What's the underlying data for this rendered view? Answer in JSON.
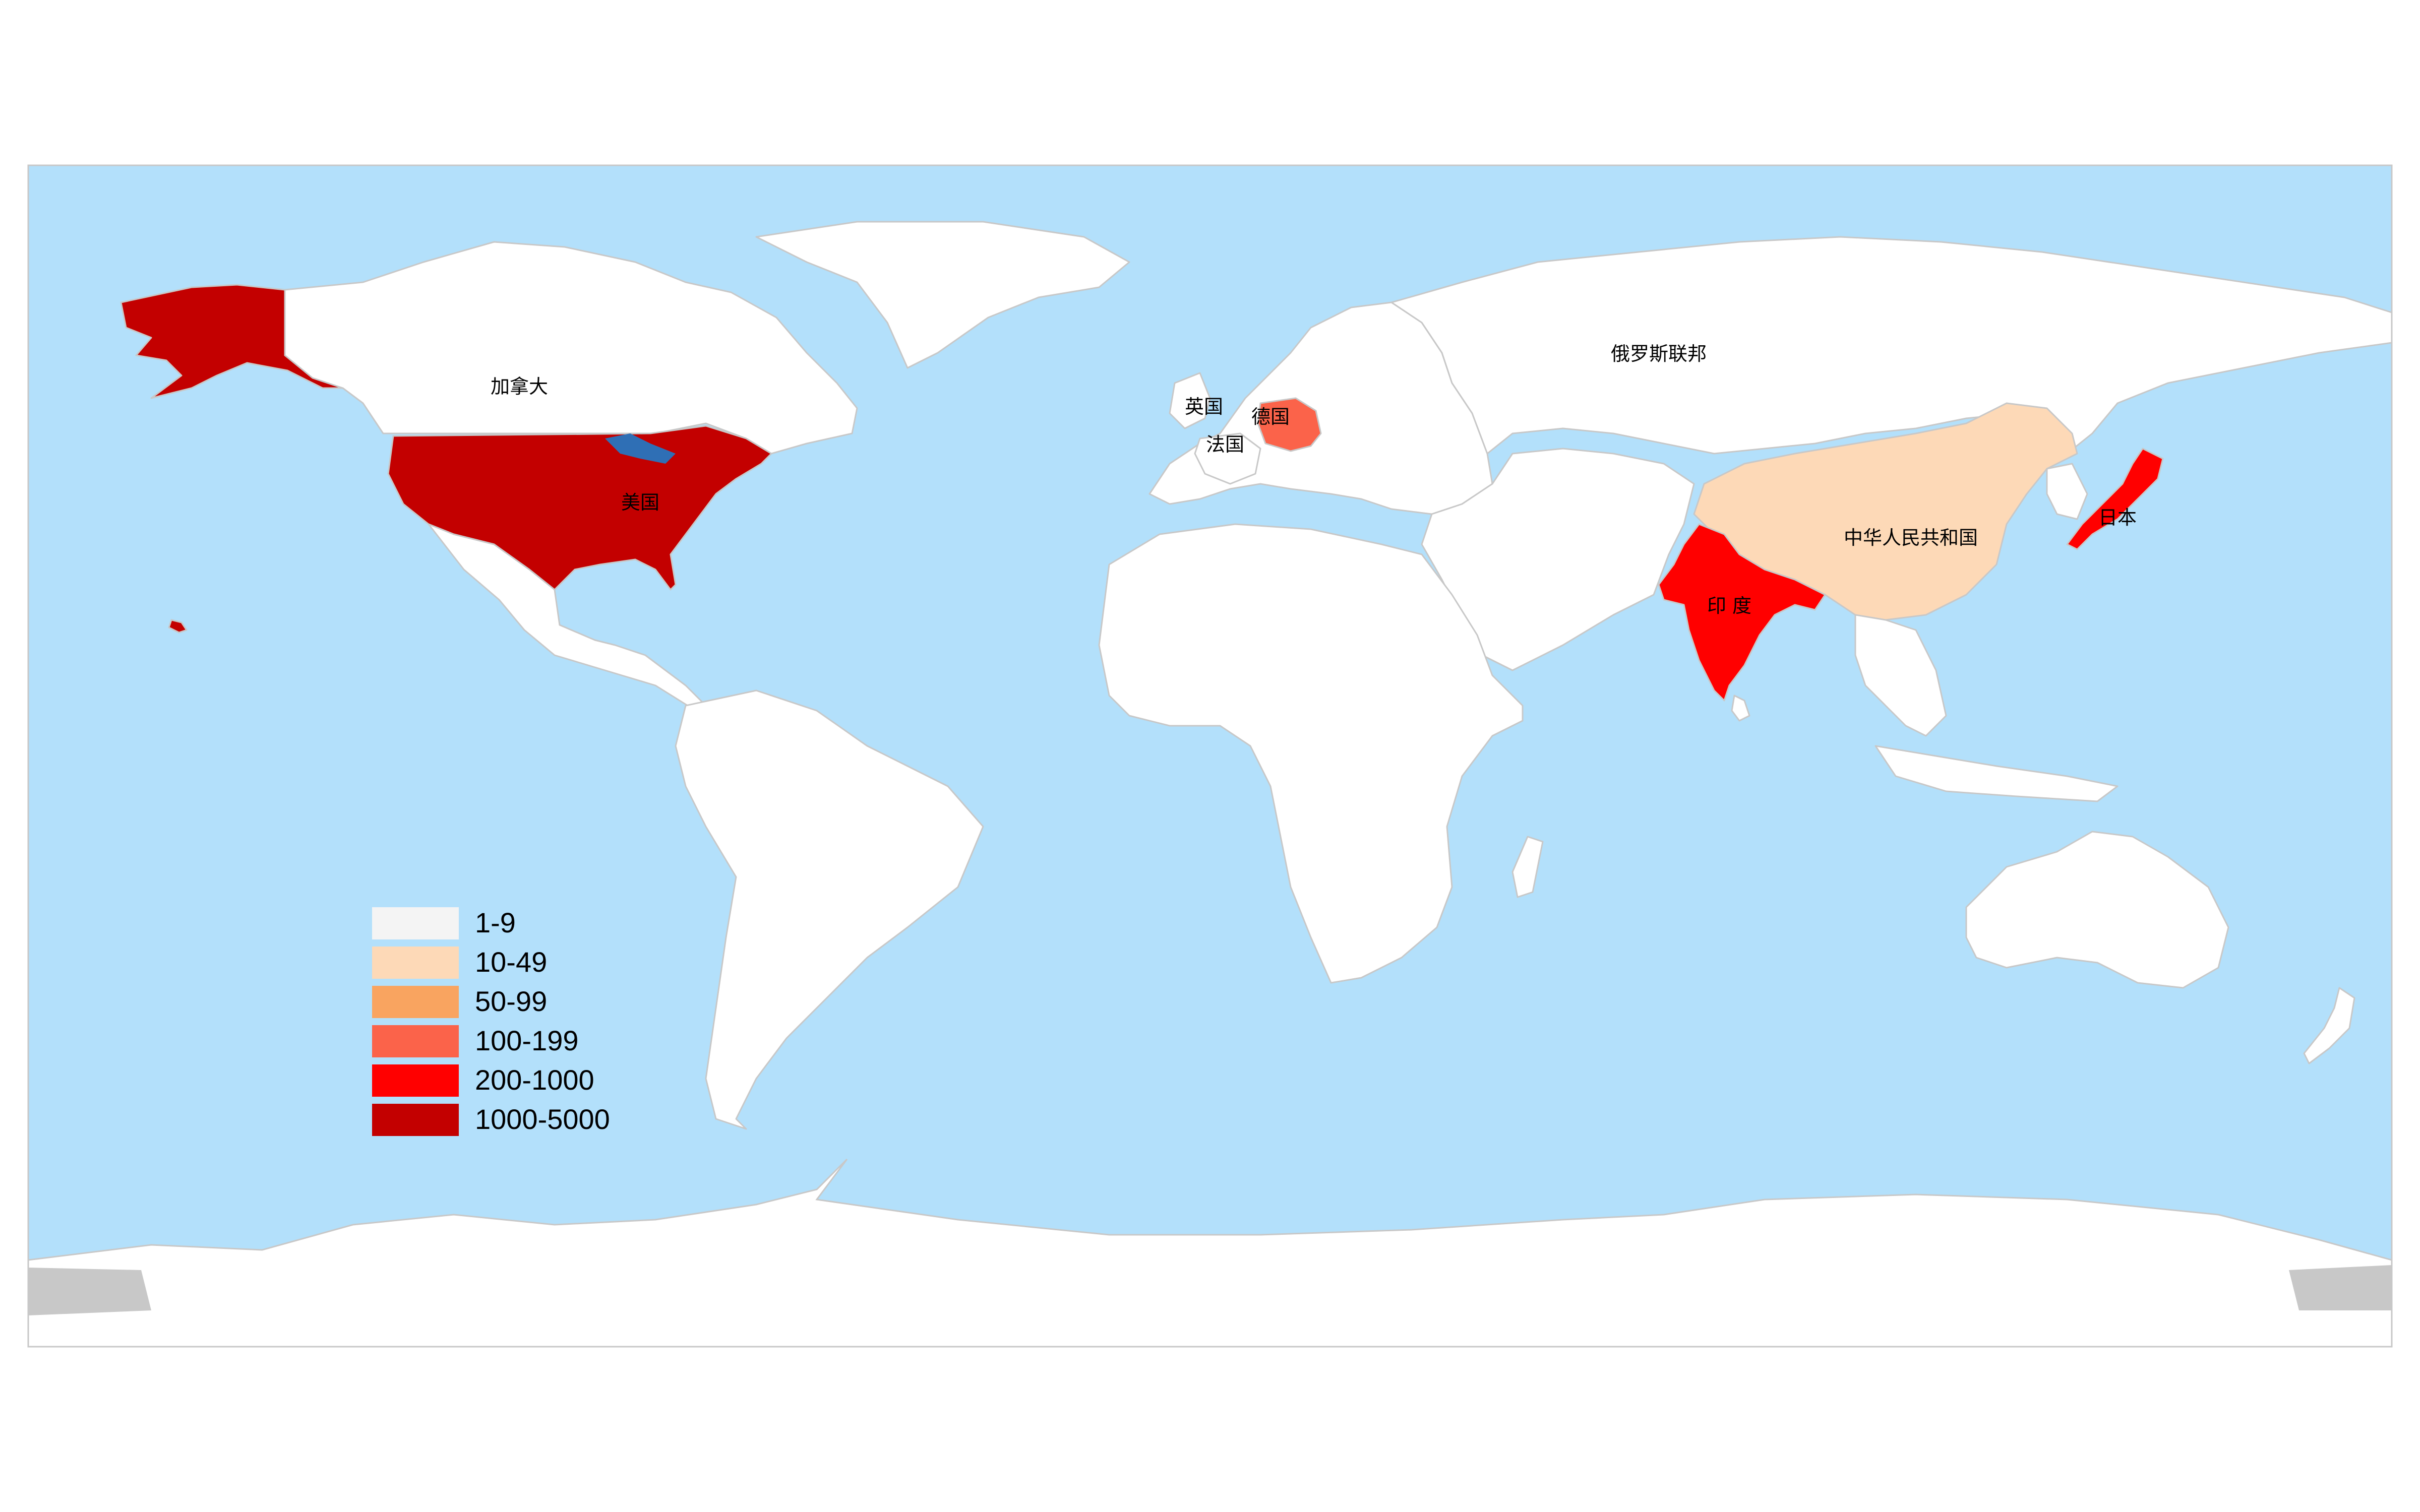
{
  "colors": {
    "ocean": "#b3e0fb",
    "land_default": "#ffffff",
    "border": "#c8c8c8",
    "lakes": "#2f6fb5",
    "polar_ice": "#c8c8c8"
  },
  "legend": {
    "bins": [
      {
        "label": "1-9",
        "color": "#f4f4f4"
      },
      {
        "label": "10-49",
        "color": "#fdd9b7"
      },
      {
        "label": "50-99",
        "color": "#f9a460"
      },
      {
        "label": "100-199",
        "color": "#fb634a"
      },
      {
        "label": "200-1000",
        "color": "#ff0000"
      },
      {
        "label": "1000-5000",
        "color": "#c30000"
      }
    ]
  },
  "countries": {
    "usa": {
      "label": "美国",
      "bin": "1000-5000",
      "color": "#c30000"
    },
    "canada": {
      "label": "加拿大",
      "bin": "1-9",
      "color": "#ffffff"
    },
    "uk": {
      "label": "英国",
      "bin": "1-9",
      "color": "#ffffff"
    },
    "france": {
      "label": "法国",
      "bin": "1-9",
      "color": "#ffffff"
    },
    "germany": {
      "label": "德国",
      "bin": "100-199",
      "color": "#fb634a"
    },
    "russia": {
      "label": "俄罗斯联邦",
      "bin": "1-9",
      "color": "#ffffff"
    },
    "china": {
      "label": "中华人民共和国",
      "bin": "10-49",
      "color": "#fdd9b7"
    },
    "india": {
      "label": "印 度",
      "bin": "200-1000",
      "color": "#ff0000"
    },
    "japan": {
      "label": "日本",
      "bin": "200-1000",
      "color": "#ff0000"
    }
  }
}
